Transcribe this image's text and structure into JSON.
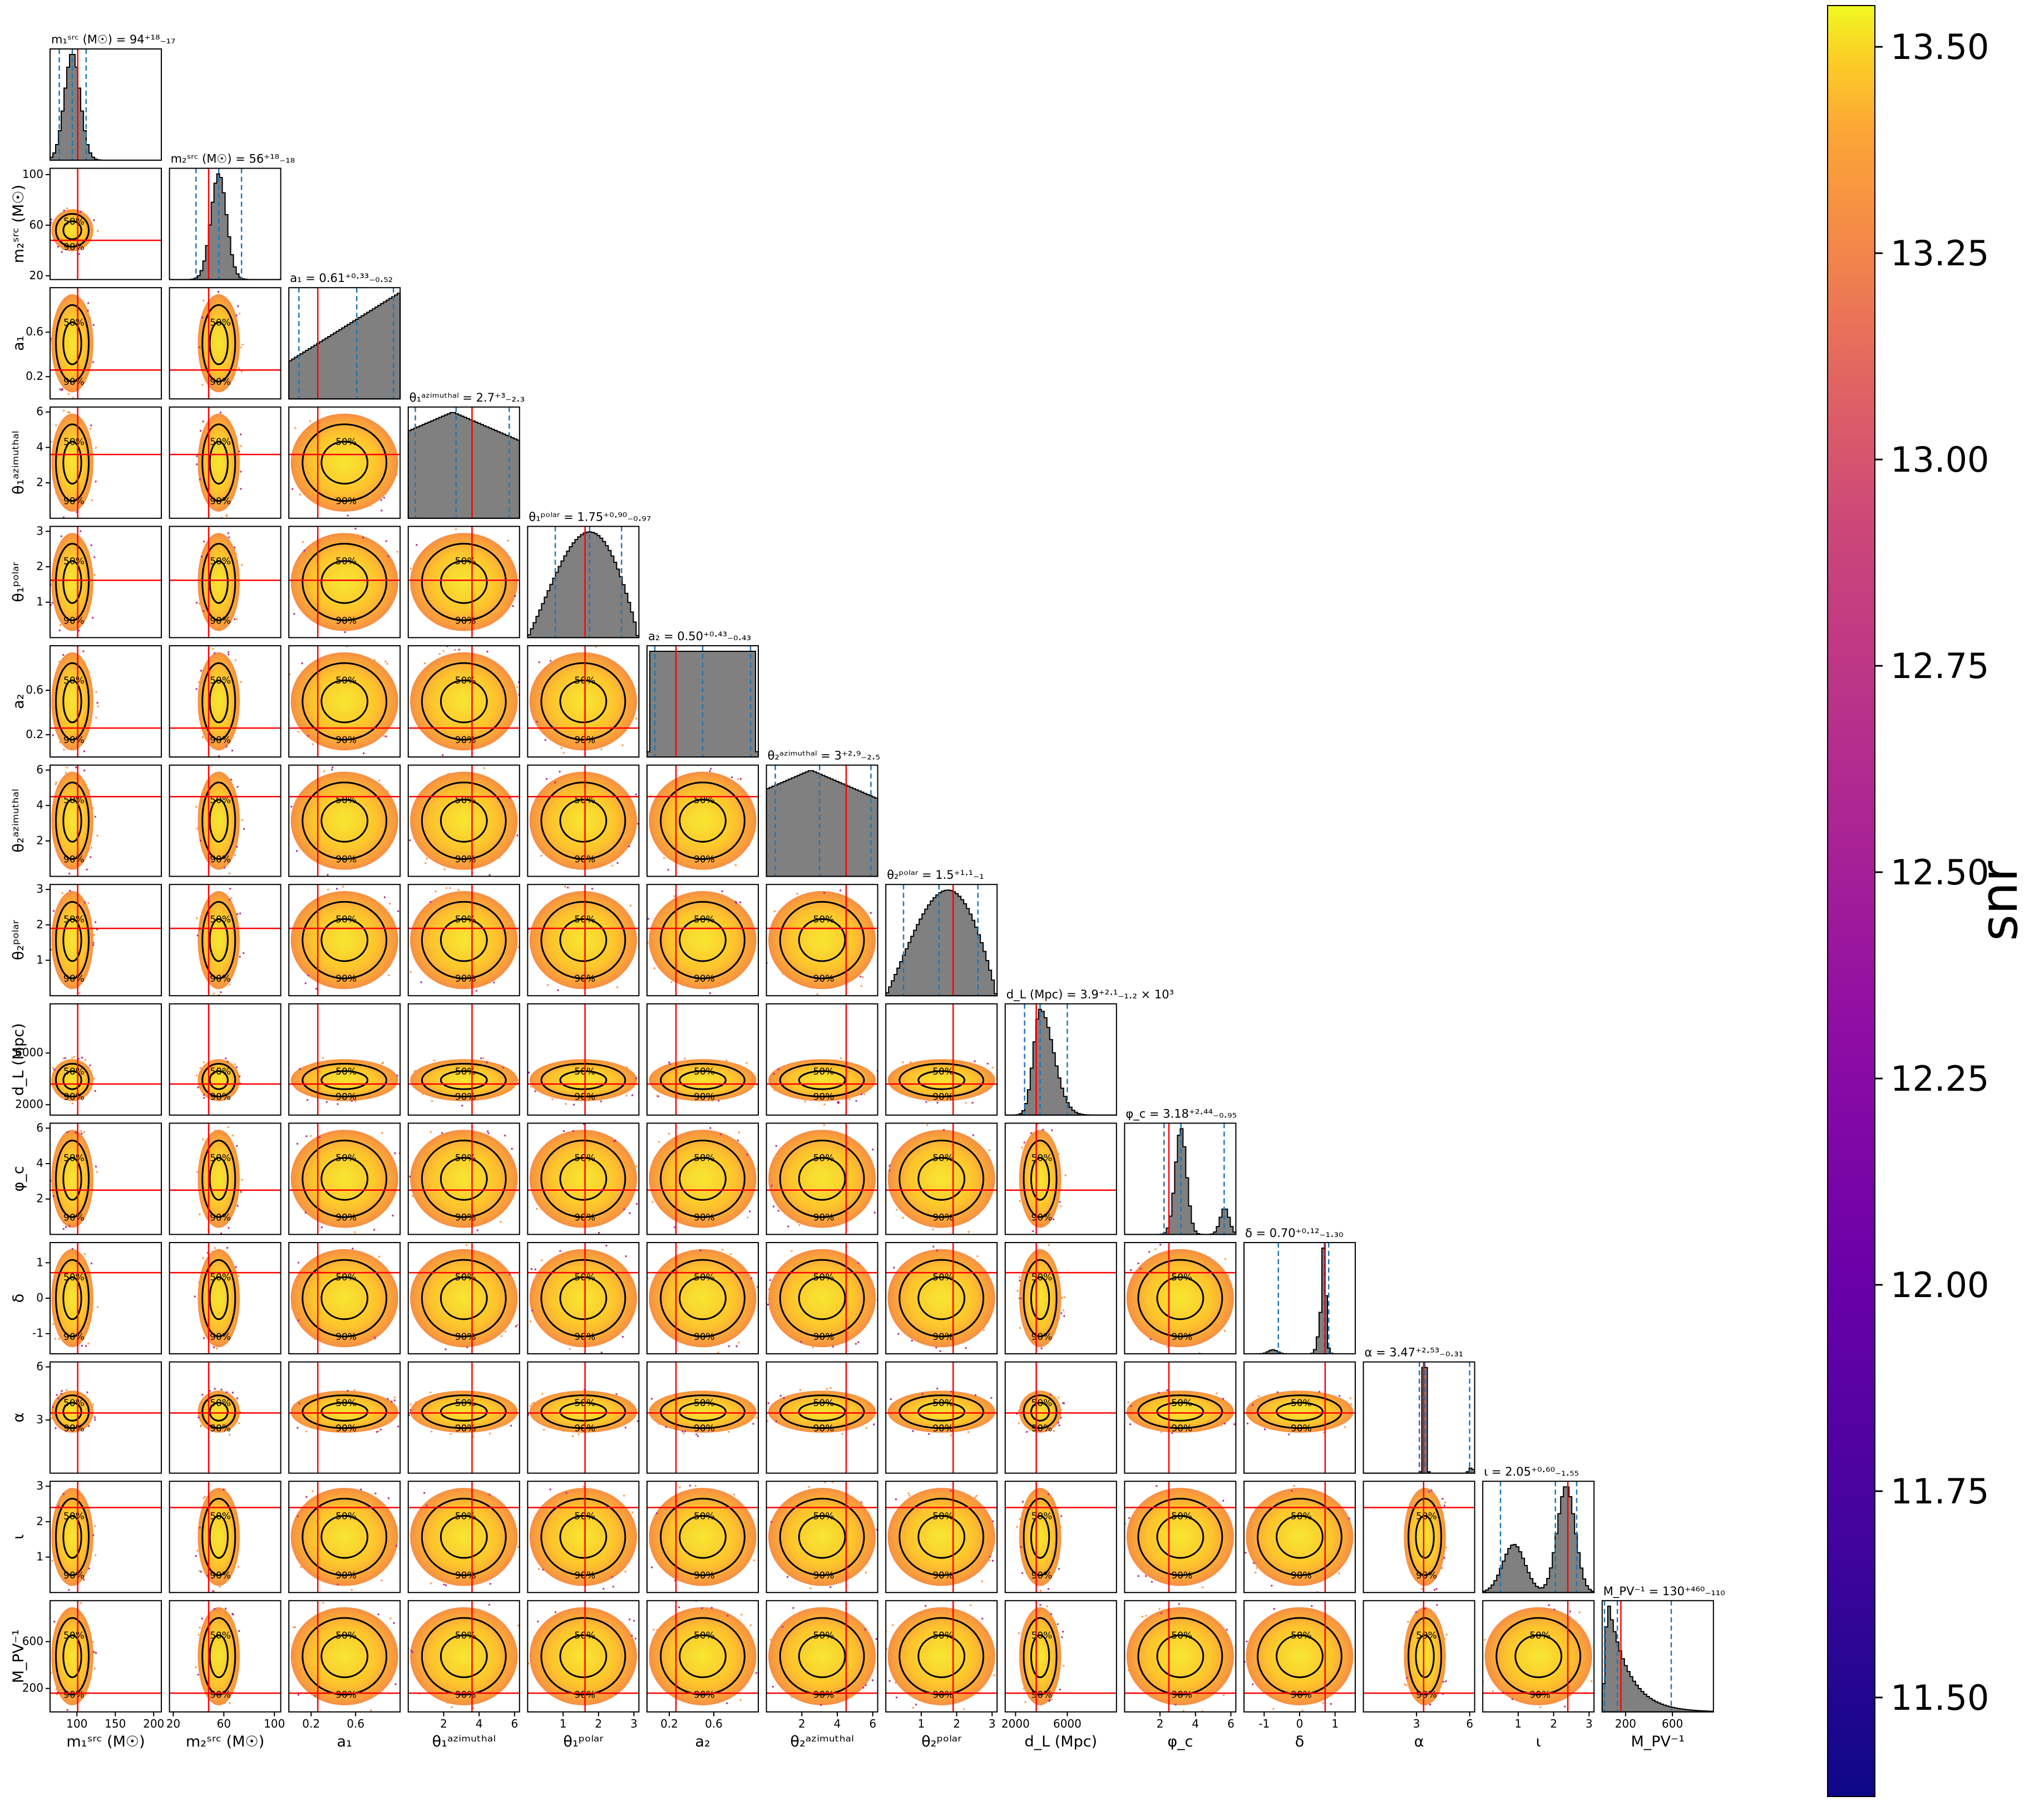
{
  "chart_data": {
    "type": "corner",
    "parameters": [
      {
        "label": "m₁ˢʳᶜ (M☉)",
        "title": "m₁ˢʳᶜ (M☉) = 94⁺¹⁸₋₁₇",
        "median": 94,
        "lo": 77,
        "hi": 112,
        "injected": 101,
        "range": [
          65,
          210
        ],
        "ticks": [
          100,
          150,
          200
        ],
        "shape": "peak"
      },
      {
        "label": "m₂ˢʳᶜ (M☉)",
        "title": "m₂ˢʳᶜ (M☉) = 56⁺¹⁸₋₁₈",
        "median": 56,
        "lo": 38,
        "hi": 74,
        "injected": 48,
        "range": [
          17,
          105
        ],
        "ticks": [
          20,
          60,
          100
        ],
        "shape": "peak"
      },
      {
        "label": "a₁",
        "title": "a₁ = 0.61⁺⁰·³³₋₀.₅₂",
        "median": 0.61,
        "lo": 0.09,
        "hi": 0.94,
        "injected": 0.26,
        "range": [
          0.0,
          1.0
        ],
        "ticks": [
          0.2,
          0.6
        ],
        "shape": "rising"
      },
      {
        "label": "θ₁ᵃᶻⁱᵐᵘᵗʰᵃˡ",
        "title": "θ₁ᵃᶻⁱᵐᵘᵗʰᵃˡ = 2.7⁺³₋₂.₃",
        "median": 2.7,
        "lo": 0.4,
        "hi": 5.7,
        "injected": 3.6,
        "range": [
          0.0,
          6.28
        ],
        "ticks": [
          2,
          4,
          6
        ],
        "shape": "broad"
      },
      {
        "label": "θ₁ᵖᵒˡᵃʳ",
        "title": "θ₁ᵖᵒˡᵃʳ = 1.75⁺⁰·⁹⁰₋₀.₉₇",
        "median": 1.75,
        "lo": 0.78,
        "hi": 2.65,
        "injected": 1.62,
        "range": [
          0.0,
          3.14
        ],
        "ticks": [
          1,
          2,
          3
        ],
        "shape": "sine"
      },
      {
        "label": "a₂",
        "title": "a₂ = 0.50⁺⁰·⁴³₋₀.₄₃",
        "median": 0.5,
        "lo": 0.07,
        "hi": 0.93,
        "injected": 0.26,
        "range": [
          0.0,
          1.0
        ],
        "ticks": [
          0.2,
          0.6
        ],
        "shape": "flat"
      },
      {
        "label": "θ₂ᵃᶻⁱᵐᵘᵗʰᵃˡ",
        "title": "θ₂ᵃᶻⁱᵐᵘᵗʰᵃˡ = 3⁺²·⁹₋₂.₅",
        "median": 3.0,
        "lo": 0.5,
        "hi": 5.9,
        "injected": 4.5,
        "range": [
          0.0,
          6.28
        ],
        "ticks": [
          2,
          4,
          6
        ],
        "shape": "broad"
      },
      {
        "label": "θ₂ᵖᵒˡᵃʳ",
        "title": "θ₂ᵖᵒˡᵃʳ = 1.5⁺¹·¹₋₁",
        "median": 1.5,
        "lo": 0.5,
        "hi": 2.6,
        "injected": 1.9,
        "range": [
          0.0,
          3.14
        ],
        "ticks": [
          1,
          2,
          3
        ],
        "shape": "sine"
      },
      {
        "label": "d_L (Mpc)",
        "title": "d_L (Mpc) = 3.9⁺²·¹₋₁.₂ × 10³",
        "median": 3900,
        "lo": 2700,
        "hi": 6000,
        "injected": 3600,
        "range": [
          1200,
          9800
        ],
        "ticks": [
          2000,
          6000
        ],
        "shape": "skewpeak"
      },
      {
        "label": "φ_c",
        "title": "φ_c = 3.18⁺²·⁴⁴₋₀.₉₅",
        "median": 3.18,
        "lo": 2.23,
        "hi": 5.62,
        "injected": 2.5,
        "range": [
          0.0,
          6.28
        ],
        "ticks": [
          2,
          4,
          6
        ],
        "shape": "phic"
      },
      {
        "label": "δ",
        "title": "δ = 0.70⁺⁰·¹²₋₁.₃₀",
        "median": 0.7,
        "lo": -0.6,
        "hi": 0.82,
        "injected": 0.72,
        "range": [
          -1.57,
          1.57
        ],
        "ticks": [
          -1,
          0,
          1
        ],
        "shape": "delta"
      },
      {
        "label": "α",
        "title": "α = 3.47⁺²·⁵³₋₀.₃₁",
        "median": 3.47,
        "lo": 3.16,
        "hi": 6.0,
        "injected": 3.4,
        "range": [
          0.0,
          6.28
        ],
        "ticks": [
          3,
          6
        ],
        "shape": "alpha"
      },
      {
        "label": "ι",
        "title": "ι = 2.05⁺⁰·⁶⁰₋₁.₅₅",
        "median": 2.05,
        "lo": 0.5,
        "hi": 2.65,
        "injected": 2.4,
        "range": [
          0.0,
          3.14
        ],
        "ticks": [
          1,
          2,
          3
        ],
        "shape": "iota"
      },
      {
        "label": "M_PV⁻¹",
        "title": "M_PV⁻¹ = 130⁺⁴⁶⁰₋₁₁₀",
        "median": 130,
        "lo": 20,
        "hi": 590,
        "injected": 160,
        "range": [
          0,
          950
        ],
        "ticks": [
          200,
          600
        ],
        "shape": "decay"
      }
    ],
    "contour_levels": [
      "50%",
      "90%"
    ],
    "colorbar": {
      "label": "snr",
      "min": 11.38,
      "max": 13.55,
      "ticks": [
        "11.50",
        "11.75",
        "12.00",
        "12.25",
        "12.50",
        "12.75",
        "13.00",
        "13.25",
        "13.50"
      ],
      "colormap": "plasma"
    },
    "colors": {
      "histogram_fill": "#808080",
      "quantile_line": "#1f77b4",
      "injected_line": "#ff0000",
      "contour": "#000000"
    }
  }
}
